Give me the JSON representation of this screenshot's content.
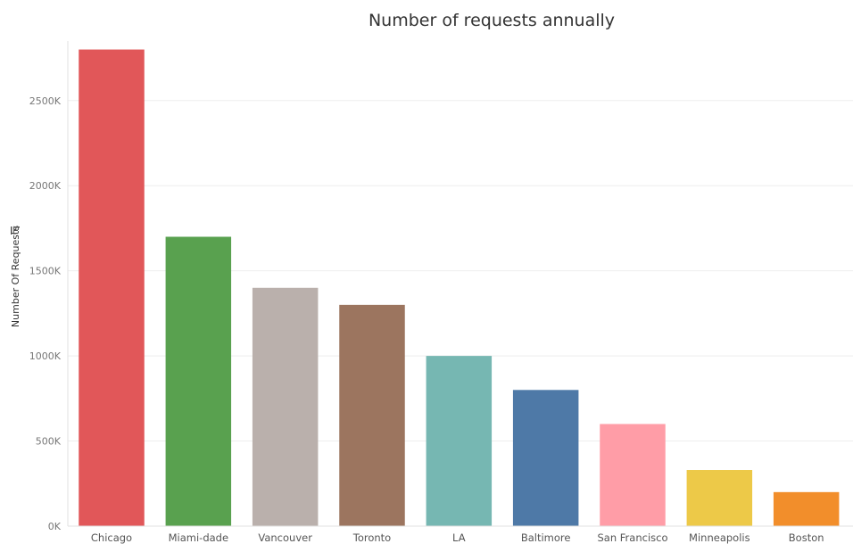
{
  "chart_data": {
    "type": "bar",
    "title": "Number of requests annually",
    "xlabel": "",
    "ylabel": "Number Of Requests",
    "categories": [
      "Chicago",
      "Miami-dade",
      "Vancouver",
      "Toronto",
      "LA",
      "Baltimore",
      "San Francisco",
      "Minneapolis",
      "Boston"
    ],
    "values": [
      2800000,
      1700000,
      1400000,
      1300000,
      1000000,
      800000,
      600000,
      330000,
      200000
    ],
    "colors": [
      "#e15759",
      "#59a14f",
      "#bab0ac",
      "#9c755f",
      "#76b7b2",
      "#4e79a7",
      "#ff9da7",
      "#edc948",
      "#f28e2b"
    ],
    "ylim": [
      0,
      2850000
    ],
    "yticks": [
      0,
      500000,
      1000000,
      1500000,
      2000000,
      2500000
    ],
    "ytick_labels": [
      "0K",
      "500K",
      "1000K",
      "1500K",
      "2000K",
      "2500K"
    ],
    "grid": true,
    "legend": "none"
  }
}
